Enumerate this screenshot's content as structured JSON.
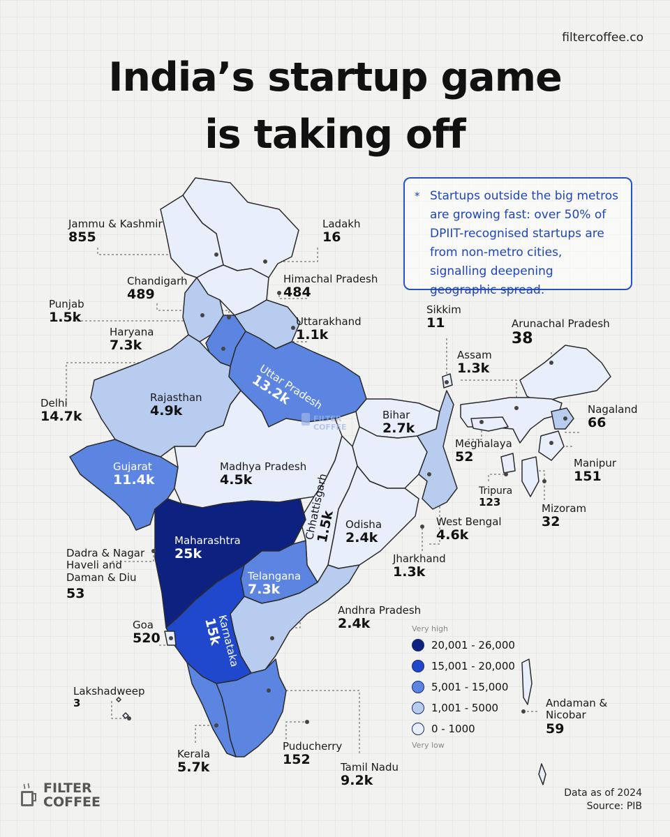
{
  "site": "filtercoffee.co",
  "title_line1": "India’s startup game",
  "title_line2": "is taking off",
  "callout": {
    "star": "*",
    "text": "Startups outside the big metros are growing fast: over 50% of DPIIT-recognised startups are from non-metro cities, signalling deepening geographic spread."
  },
  "regions": [
    {
      "name": "Jammu & Kashmir",
      "value": "855"
    },
    {
      "name": "Ladakh",
      "value": "16"
    },
    {
      "name": "Chandigarh",
      "value": "489"
    },
    {
      "name": "Himachal Pradesh",
      "value": "484"
    },
    {
      "name": "Punjab",
      "value": "1.5k"
    },
    {
      "name": "Haryana",
      "value": "7.3k"
    },
    {
      "name": "Uttarakhand",
      "value": "1.1k"
    },
    {
      "name": "Sikkim",
      "value": "11"
    },
    {
      "name": "Arunachal Pradesh",
      "value": "38"
    },
    {
      "name": "Delhi",
      "value": "14.7k"
    },
    {
      "name": "Assam",
      "value": "1.3k"
    },
    {
      "name": "Rajasthan",
      "value": "4.9k"
    },
    {
      "name": "Uttar Pradesh",
      "value": "13.2k"
    },
    {
      "name": "Bihar",
      "value": "2.7k"
    },
    {
      "name": "Nagaland",
      "value": "66"
    },
    {
      "name": "Meghalaya",
      "value": "52"
    },
    {
      "name": "Gujarat",
      "value": "11.4k"
    },
    {
      "name": "Madhya Pradesh",
      "value": "4.5k"
    },
    {
      "name": "Manipur",
      "value": "151"
    },
    {
      "name": "Chhattisgarh",
      "value": "1.5k"
    },
    {
      "name": "Tripura",
      "value": "123"
    },
    {
      "name": "Mizoram",
      "value": "32"
    },
    {
      "name": "West Bengal",
      "value": "4.6k"
    },
    {
      "name": "Maharashtra",
      "value": "25k"
    },
    {
      "name": "Odisha",
      "value": "2.4k"
    },
    {
      "name": "Dadra & Nagar Haveli and Daman & Diu",
      "value": "53"
    },
    {
      "name": "Jharkhand",
      "value": "1.3k"
    },
    {
      "name": "Telangana",
      "value": "7.3k"
    },
    {
      "name": "Andhra Pradesh",
      "value": "2.4k"
    },
    {
      "name": "Goa",
      "value": "520"
    },
    {
      "name": "Karnataka",
      "value": "15k"
    },
    {
      "name": "Lakshadweep",
      "value": "3"
    },
    {
      "name": "Andaman & Nicobar",
      "value": "59"
    },
    {
      "name": "Kerala",
      "value": "5.7k"
    },
    {
      "name": "Puducherry",
      "value": "152"
    },
    {
      "name": "Tamil Nadu",
      "value": "9.2k"
    }
  ],
  "dadra_lines": [
    "Dadra & Nagar",
    "Haveli and",
    "Daman & Diu"
  ],
  "andaman_lines": [
    "Andaman &",
    "Nicobar"
  ],
  "legend": {
    "top_caption": "Very high",
    "bottom_caption": "Very low",
    "items": [
      {
        "label": "20,001 - 26,000",
        "color": "#0d2280"
      },
      {
        "label": "15,001 - 20,000",
        "color": "#1f48cc"
      },
      {
        "label": "5,001 - 15,000",
        "color": "#5b85e0"
      },
      {
        "label": "1,001 - 5000",
        "color": "#b8ccf0"
      },
      {
        "label": "0 - 1000",
        "color": "#e8eefa"
      }
    ]
  },
  "footer": {
    "line1": "Data as of 2024",
    "line2": "Source: PIB"
  },
  "brand": {
    "line1": "FILTER",
    "line2": "COFFEE",
    "map_watermark_line1": "FILTER",
    "map_watermark_line2": "COFFEE"
  }
}
